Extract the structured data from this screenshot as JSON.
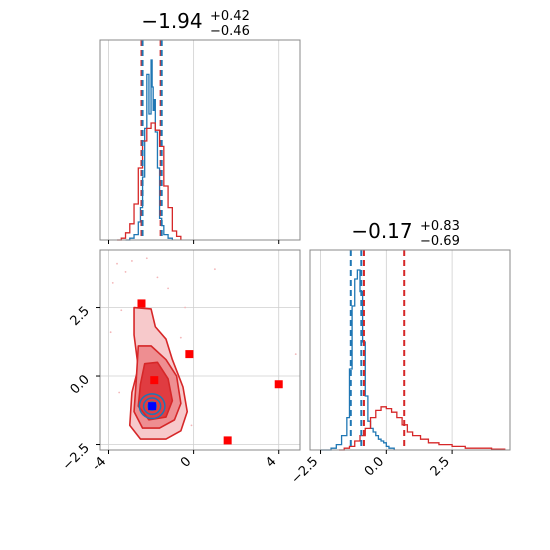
{
  "chart_data": [
    {
      "type": "histogram",
      "panel": "top-left",
      "title": {
        "median": "−1.94",
        "plus": "+0.42",
        "minus": "−0.46"
      },
      "xlim": [
        -4.4,
        5.0
      ],
      "xticks": [
        -4,
        0,
        4
      ],
      "grid": true,
      "series": [
        {
          "color": "#1f77b4",
          "style": "step",
          "x": [
            -3.2,
            -3.0,
            -2.8,
            -2.6,
            -2.5,
            -2.4,
            -2.3,
            -2.2,
            -2.1,
            -2.0,
            -1.95,
            -1.9,
            -1.85,
            -1.8,
            -1.7,
            -1.6,
            -1.5,
            -1.4,
            -1.2,
            -1.0
          ],
          "y": [
            0.0,
            0.01,
            0.03,
            0.1,
            0.18,
            0.35,
            0.62,
            0.92,
            0.7,
            1.0,
            0.85,
            0.72,
            0.78,
            0.6,
            0.4,
            0.12,
            0.08,
            0.03,
            0.01,
            0.0
          ]
        },
        {
          "color": "#d62728",
          "style": "step",
          "x": [
            -3.6,
            -3.4,
            -3.2,
            -3.0,
            -2.8,
            -2.6,
            -2.4,
            -2.2,
            -2.0,
            -1.8,
            -1.6,
            -1.4,
            -1.2,
            -1.0,
            -0.8,
            -0.6
          ],
          "y": [
            0.0,
            0.01,
            0.04,
            0.09,
            0.2,
            0.4,
            0.55,
            0.62,
            0.65,
            0.61,
            0.52,
            0.3,
            0.18,
            0.05,
            0.02,
            0.0
          ]
        }
      ],
      "vlines": [
        {
          "x": -2.45,
          "color": "#d62728"
        },
        {
          "x": -2.4,
          "color": "#1f77b4"
        },
        {
          "x": -1.55,
          "color": "#d62728"
        },
        {
          "x": -1.5,
          "color": "#1f77b4"
        }
      ]
    },
    {
      "type": "scatter",
      "panel": "bottom-left",
      "xlim": [
        -4.4,
        5.0
      ],
      "ylim": [
        -2.7,
        4.6
      ],
      "xticks": [
        -4,
        0,
        4
      ],
      "yticks": [
        -2.5,
        0.0,
        2.5
      ],
      "ytick_labels": [
        "−2.5",
        "0.0",
        "2.5"
      ],
      "grid": true,
      "red_contours": [
        {
          "fill": "#f7c9cb",
          "points": [
            [
              -2.8,
              2.5
            ],
            [
              -2.0,
              2.45
            ],
            [
              -1.8,
              1.8
            ],
            [
              -1.3,
              1.35
            ],
            [
              -1.0,
              0.6
            ],
            [
              -0.5,
              -0.4
            ],
            [
              -0.3,
              -1.3
            ],
            [
              -0.6,
              -2.0
            ],
            [
              -1.3,
              -2.3
            ],
            [
              -2.5,
              -2.3
            ],
            [
              -3.0,
              -1.8
            ],
            [
              -2.9,
              -0.6
            ],
            [
              -2.6,
              0.3
            ],
            [
              -2.8,
              1.5
            ]
          ]
        },
        {
          "fill": "#ee8e91",
          "points": [
            [
              -2.6,
              1.1
            ],
            [
              -2.0,
              1.1
            ],
            [
              -1.3,
              0.6
            ],
            [
              -0.8,
              0.0
            ],
            [
              -0.6,
              -1.0
            ],
            [
              -0.9,
              -1.6
            ],
            [
              -1.6,
              -1.9
            ],
            [
              -2.4,
              -1.9
            ],
            [
              -2.8,
              -1.3
            ],
            [
              -2.7,
              -0.2
            ]
          ]
        },
        {
          "fill": "#e03c41",
          "points": [
            [
              -2.3,
              0.45
            ],
            [
              -1.7,
              0.5
            ],
            [
              -1.2,
              -0.1
            ],
            [
              -1.0,
              -0.9
            ],
            [
              -1.3,
              -1.5
            ],
            [
              -2.1,
              -1.6
            ],
            [
              -2.6,
              -1.1
            ],
            [
              -2.5,
              -0.3
            ]
          ]
        }
      ],
      "blue_contours": [
        {
          "cx": -1.95,
          "cy": -1.1,
          "rx": 0.6,
          "ry": 0.45
        },
        {
          "cx": -1.95,
          "cy": -1.1,
          "rx": 0.4,
          "ry": 0.3
        },
        {
          "cx": -1.95,
          "cy": -1.1,
          "rx": 0.2,
          "ry": 0.15
        }
      ],
      "red_markers": [
        [
          -2.45,
          2.65
        ],
        [
          -0.2,
          0.8
        ],
        [
          -1.85,
          -0.15
        ],
        [
          4.0,
          -0.3
        ],
        [
          1.6,
          -2.35
        ]
      ],
      "blue_marker": [
        -1.95,
        -1.1
      ],
      "scatter_points": [
        [
          -3.6,
          4.1
        ],
        [
          -3.2,
          3.8
        ],
        [
          -2.9,
          4.2
        ],
        [
          -3.8,
          3.4
        ],
        [
          -1.7,
          3.6
        ],
        [
          -1.2,
          3.2
        ],
        [
          -0.4,
          2.5
        ],
        [
          -3.9,
          1.6
        ],
        [
          -0.6,
          1.4
        ],
        [
          -3.5,
          -0.6
        ],
        [
          -0.1,
          -1.8
        ],
        [
          4.8,
          0.8
        ],
        [
          1.0,
          3.9
        ],
        [
          -2.2,
          4.3
        ],
        [
          -3.4,
          2.4
        ]
      ]
    },
    {
      "type": "histogram",
      "panel": "bottom-right",
      "title": {
        "median": "−0.17",
        "plus": "+0.83",
        "minus": "−0.69"
      },
      "xlim": [
        -2.9,
        4.7
      ],
      "xticks": [
        -2.5,
        0.0,
        2.5
      ],
      "xtick_labels": [
        "−2.5",
        "0.0",
        "2.5"
      ],
      "grid": true,
      "series": [
        {
          "color": "#1f77b4",
          "style": "step",
          "x": [
            -2.5,
            -2.1,
            -1.9,
            -1.7,
            -1.5,
            -1.4,
            -1.3,
            -1.2,
            -1.1,
            -1.0,
            -0.9,
            -0.8,
            -0.7,
            -0.6,
            -0.5,
            -0.4,
            -0.3,
            -0.2,
            -0.1,
            0.0,
            0.1,
            0.3
          ],
          "y": [
            0.0,
            0.01,
            0.03,
            0.08,
            0.18,
            0.45,
            0.8,
            0.95,
            1.0,
            0.88,
            0.6,
            0.3,
            0.16,
            0.12,
            0.1,
            0.08,
            0.06,
            0.05,
            0.04,
            0.02,
            0.01,
            0.0
          ]
        },
        {
          "color": "#d62728",
          "style": "step",
          "x": [
            -1.8,
            -1.6,
            -1.4,
            -1.2,
            -1.0,
            -0.8,
            -0.6,
            -0.4,
            -0.2,
            0.0,
            0.2,
            0.4,
            0.6,
            0.8,
            1.0,
            1.3,
            1.6,
            2.0,
            2.5,
            3.0,
            3.5,
            4.0,
            4.5
          ],
          "y": [
            0.0,
            0.01,
            0.02,
            0.05,
            0.08,
            0.12,
            0.18,
            0.22,
            0.24,
            0.23,
            0.21,
            0.18,
            0.14,
            0.1,
            0.08,
            0.06,
            0.04,
            0.03,
            0.02,
            0.01,
            0.01,
            0.005,
            0.0
          ]
        }
      ],
      "vlines": [
        {
          "x": -1.35,
          "color": "#1f77b4"
        },
        {
          "x": -0.95,
          "color": "#1f77b4"
        },
        {
          "x": -0.85,
          "color": "#d62728"
        },
        {
          "x": 0.68,
          "color": "#d62728"
        }
      ]
    }
  ]
}
